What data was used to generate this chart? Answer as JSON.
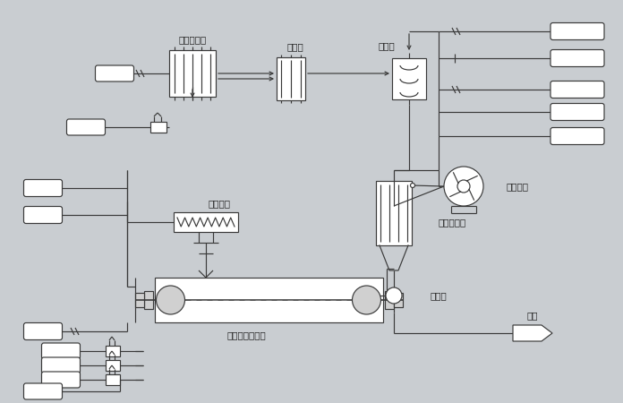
{
  "bg_color": "#c9cdd1",
  "line_color": "#3a3a3a",
  "label_color": "#222222",
  "labels": {
    "steam_heat": "蒸汽换热器",
    "demister": "除雾器",
    "surface_cooler": "表冷器",
    "circfan": "循环风机",
    "bag_filter": "袋式除尘器",
    "rotary_valve": "关风器",
    "screw_feeder": "加料绞龙",
    "paddle_dryer": "桨叶干燥冷却机",
    "product": "产品"
  },
  "font_size": 7.5
}
